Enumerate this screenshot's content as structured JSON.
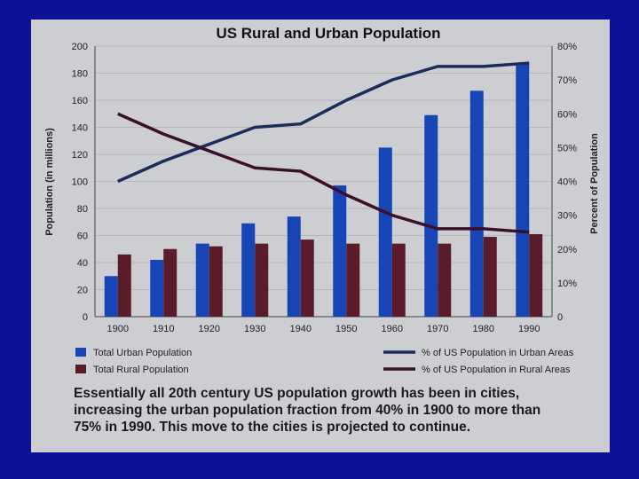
{
  "chart_data": {
    "type": "bar+line",
    "title": "US Rural and Urban Population",
    "categories": [
      "1900",
      "1910",
      "1920",
      "1930",
      "1940",
      "1950",
      "1960",
      "1970",
      "1980",
      "1990"
    ],
    "ylabel_left": "Population (in millions)",
    "ylim_left": [
      0,
      200
    ],
    "yticks_left": [
      0,
      20,
      40,
      60,
      80,
      100,
      120,
      140,
      160,
      180,
      200
    ],
    "ylabel_right": "Percent of Population",
    "ylim_right": [
      0,
      80
    ],
    "yticks_right": [
      "0",
      "10%",
      "20%",
      "30%",
      "40%",
      "50%",
      "60%",
      "70%",
      "80%"
    ],
    "bar_series": [
      {
        "name": "Total Urban Population",
        "color": "#1745b5",
        "values": [
          30,
          42,
          54,
          69,
          74,
          97,
          125,
          149,
          167,
          187
        ]
      },
      {
        "name": "Total Rural Population",
        "color": "#5a1c2a",
        "values": [
          46,
          50,
          52,
          54,
          57,
          54,
          54,
          54,
          59,
          61
        ]
      }
    ],
    "line_series": [
      {
        "name": "% of US Population in Urban Areas",
        "color": "#1c2c5a",
        "values": [
          40,
          46,
          51,
          56,
          57,
          64,
          70,
          74,
          74,
          75
        ]
      },
      {
        "name": "% of US Population in Rural Areas",
        "color": "#3a0f2a",
        "values": [
          60,
          54,
          49,
          44,
          43,
          36,
          30,
          26,
          26,
          25
        ]
      }
    ]
  },
  "caption": "Essentially all 20th century US population growth has been in cities,\nincreasing the urban population fraction from 40% in 1900 to more than\n75% in 1990.  This move to the cities is projected to continue."
}
